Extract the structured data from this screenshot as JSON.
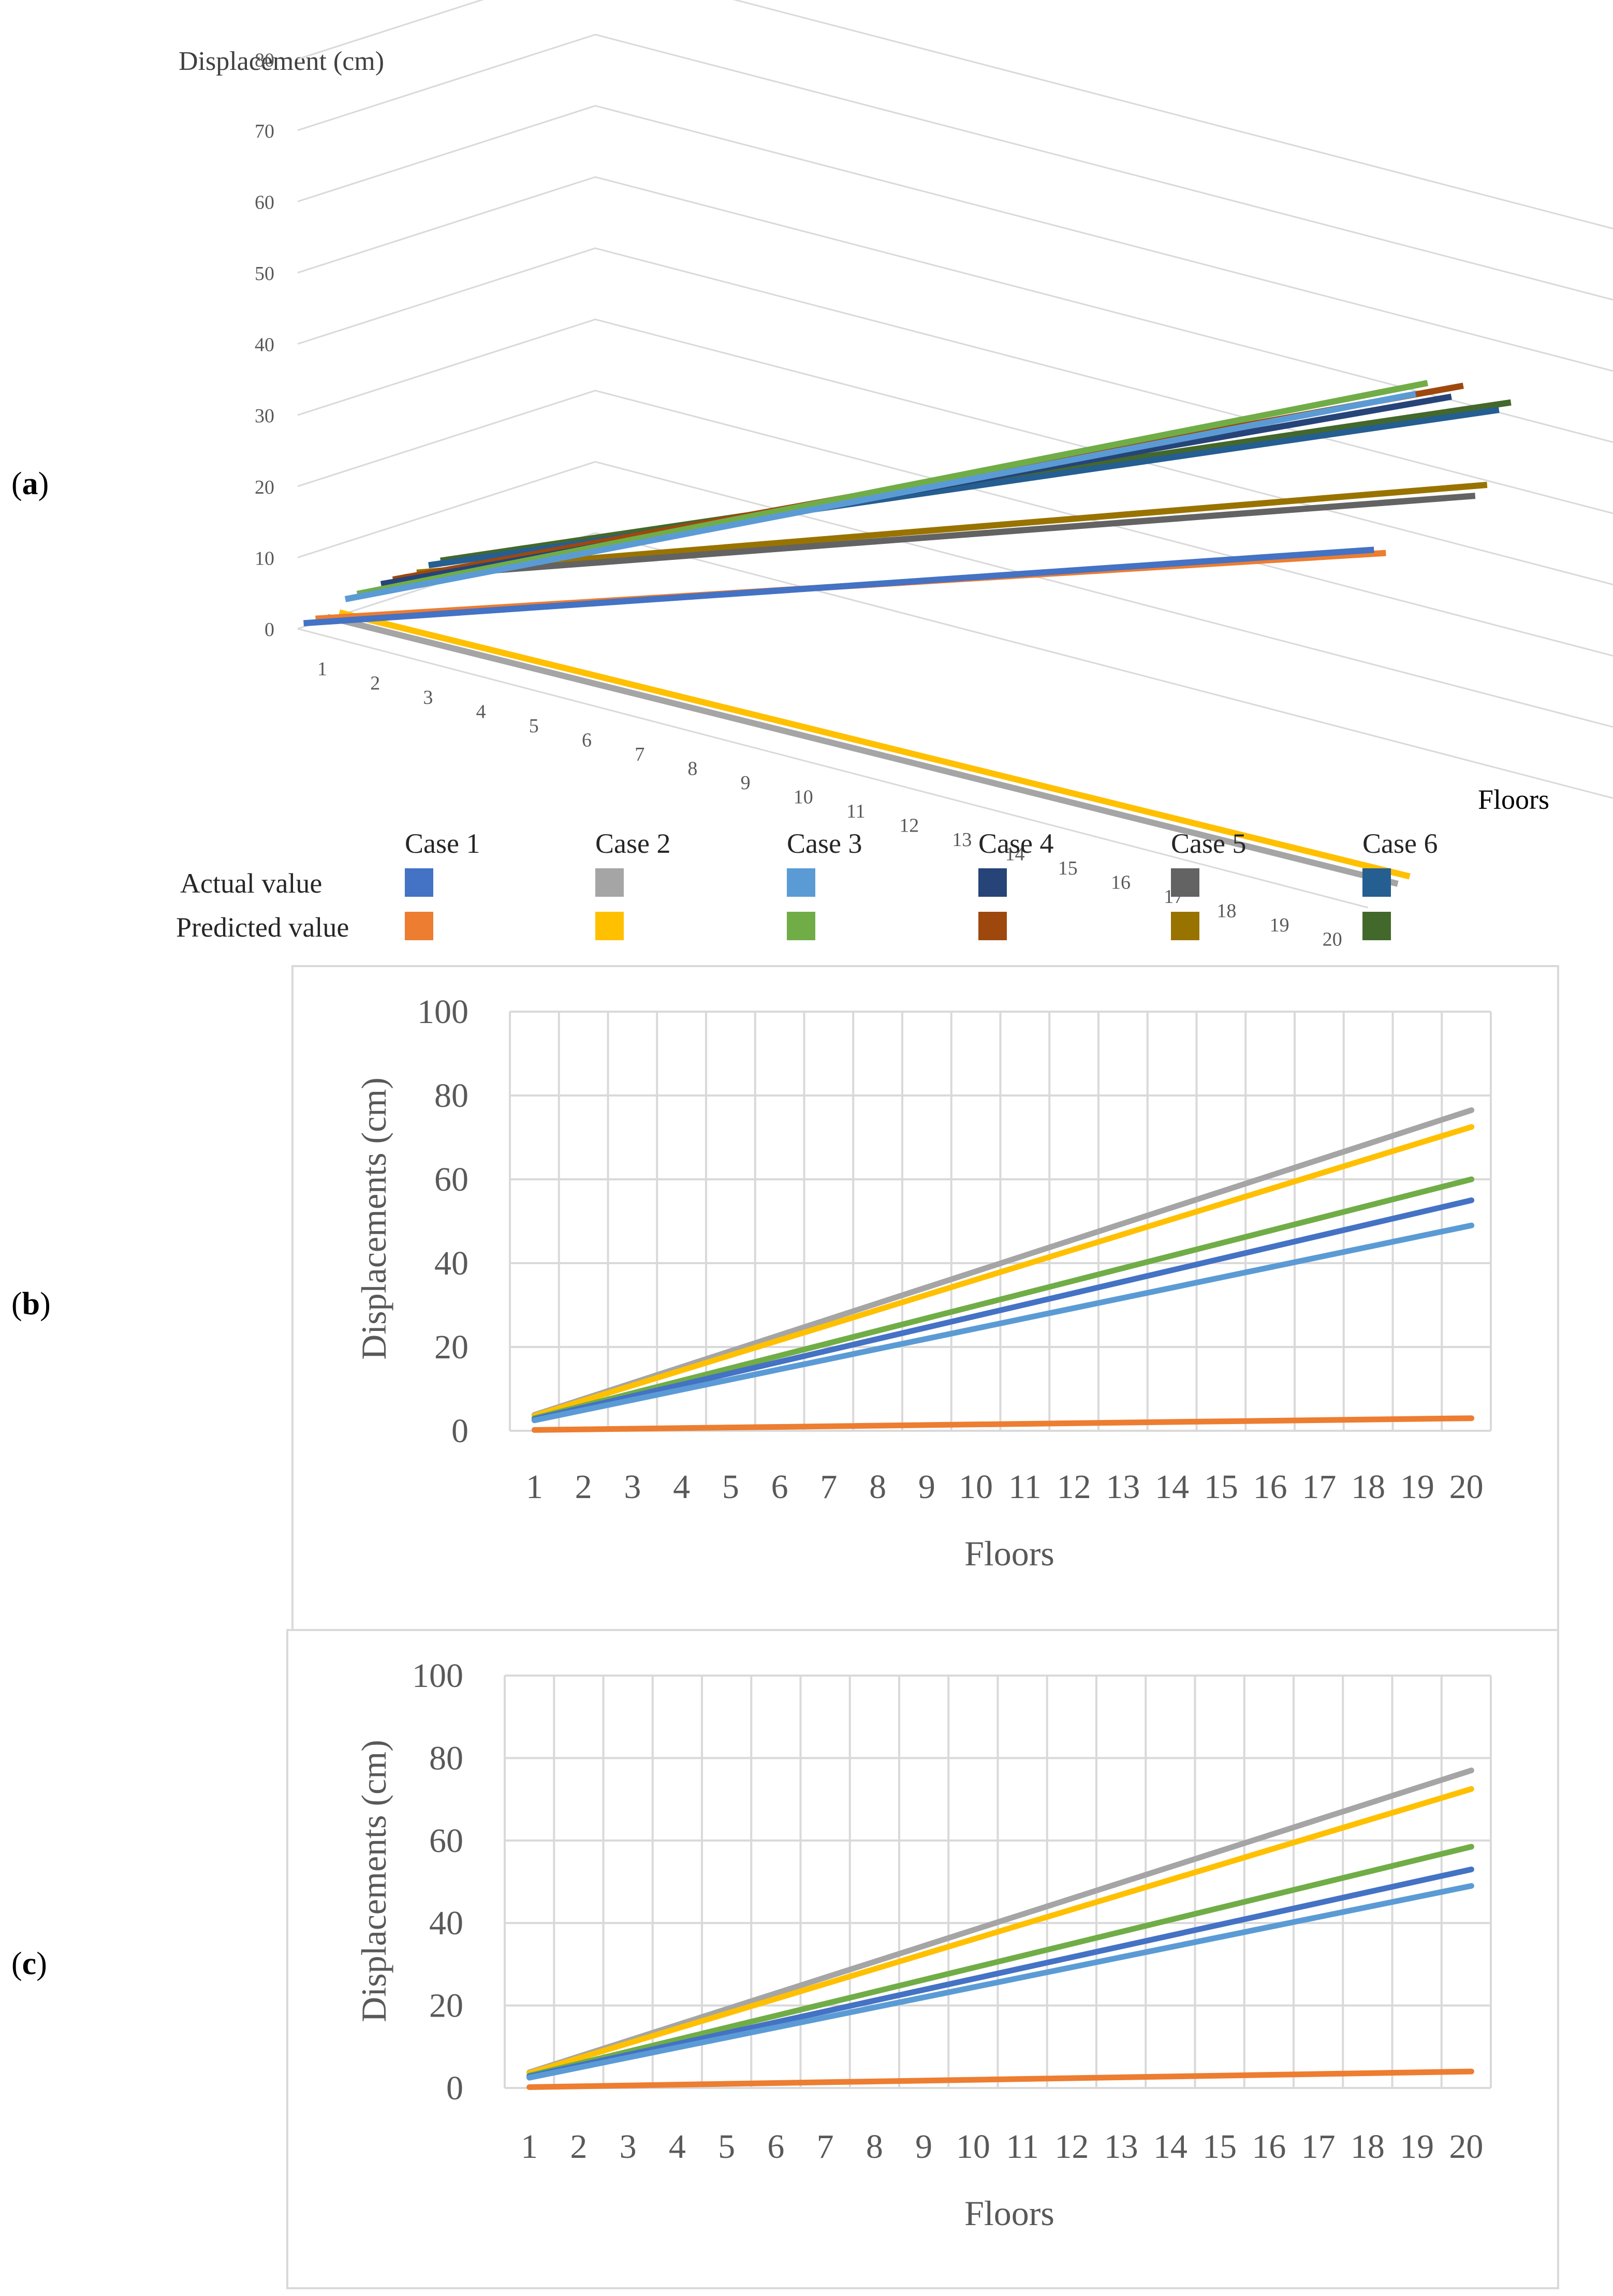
{
  "panel_labels": {
    "a_open": "(",
    "a": "a",
    "a_close": ")",
    "b_open": "(",
    "b": "b",
    "b_close": ")",
    "c_open": "(",
    "c": "c",
    "c_close": ")"
  },
  "colors": {
    "case1_actual": "#4472C4",
    "case1_pred": "#ED7D31",
    "case2_actual": "#A5A5A5",
    "case2_pred": "#FFC000",
    "case3_actual": "#5B9BD5",
    "case3_pred": "#70AD47",
    "case4_actual": "#264478",
    "case4_pred": "#9E480E",
    "case5_actual": "#636363",
    "case5_pred": "#997300",
    "case6_actual": "#255E91",
    "case6_pred": "#43682B",
    "grid": "#d9d9d9",
    "axis_text": "#595959"
  },
  "chart_data": [
    {
      "type": "line",
      "title": "",
      "xlabel": "Floors",
      "ylabel": "Displacement (cm)",
      "ylim": [
        0,
        80
      ],
      "y_ticks": [
        "0",
        "10",
        "20",
        "30",
        "40",
        "50",
        "60",
        "70",
        "80"
      ],
      "categories": [
        "1",
        "2",
        "3",
        "4",
        "5",
        "6",
        "7",
        "8",
        "9",
        "10",
        "11",
        "12",
        "13",
        "14",
        "15",
        "16",
        "17",
        "18",
        "19",
        "20"
      ],
      "legend": {
        "columns": [
          "Case 1",
          "Case 2",
          "Case 3",
          "Case 4",
          "Case 5",
          "Case 6"
        ],
        "rows": [
          "Actual value",
          "Predicted value"
        ]
      },
      "series": [
        {
          "name": "Case 1 Actual value",
          "start": 0.5,
          "end": 50
        },
        {
          "name": "Case 1 Predicted value",
          "start": 0.6,
          "end": 49
        },
        {
          "name": "Case 2 Actual value",
          "start": 0.3,
          "end": 2
        },
        {
          "name": "Case 2 Predicted value",
          "start": 0.4,
          "end": 2.5
        },
        {
          "name": "Case 3 Actual value",
          "start": 2,
          "end": 70
        },
        {
          "name": "Case 3 Predicted value",
          "start": 2.2,
          "end": 71
        },
        {
          "name": "Case 4 Actual value",
          "start": 2.5,
          "end": 68
        },
        {
          "name": "Case 4 Predicted value",
          "start": 2.6,
          "end": 69
        },
        {
          "name": "Case 5 Actual value",
          "start": 2.4,
          "end": 53
        },
        {
          "name": "Case 5 Predicted value",
          "start": 2.5,
          "end": 54
        },
        {
          "name": "Case 6 Actual value",
          "start": 3,
          "end": 64
        },
        {
          "name": "Case 6 Predicted value",
          "start": 3.1,
          "end": 64.5
        }
      ]
    },
    {
      "type": "line",
      "title": "",
      "xlabel": "Floors",
      "ylabel": "Displacements (cm)",
      "ylim": [
        0,
        100
      ],
      "y_ticks": [
        "0",
        "20",
        "40",
        "60",
        "80",
        "100"
      ],
      "categories": [
        "1",
        "2",
        "3",
        "4",
        "5",
        "6",
        "7",
        "8",
        "9",
        "10",
        "11",
        "12",
        "13",
        "14",
        "15",
        "16",
        "17",
        "18",
        "19",
        "20"
      ],
      "series": [
        {
          "name": "Gray",
          "start": 3.8,
          "end": 76.5
        },
        {
          "name": "Yellow",
          "start": 3.6,
          "end": 72.5
        },
        {
          "name": "Green",
          "start": 3.0,
          "end": 60
        },
        {
          "name": "Dark blue",
          "start": 2.8,
          "end": 55
        },
        {
          "name": "Light blue",
          "start": 2.5,
          "end": 49
        },
        {
          "name": "Orange",
          "start": 0.2,
          "end": 3
        }
      ]
    },
    {
      "type": "line",
      "title": "",
      "xlabel": "Floors",
      "ylabel": "Displacements (cm)",
      "ylim": [
        0,
        100
      ],
      "y_ticks": [
        "0",
        "20",
        "40",
        "60",
        "80",
        "100"
      ],
      "categories": [
        "1",
        "2",
        "3",
        "4",
        "5",
        "6",
        "7",
        "8",
        "9",
        "10",
        "11",
        "12",
        "13",
        "14",
        "15",
        "16",
        "17",
        "18",
        "19",
        "20"
      ],
      "series": [
        {
          "name": "Gray",
          "start": 3.8,
          "end": 77
        },
        {
          "name": "Yellow",
          "start": 3.6,
          "end": 72.5
        },
        {
          "name": "Green",
          "start": 3.0,
          "end": 58.5
        },
        {
          "name": "Dark blue",
          "start": 2.8,
          "end": 53
        },
        {
          "name": "Light blue",
          "start": 2.5,
          "end": 49
        },
        {
          "name": "Orange",
          "start": 0.2,
          "end": 4
        }
      ]
    }
  ]
}
